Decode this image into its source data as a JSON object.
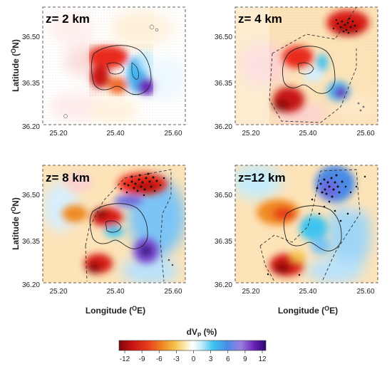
{
  "panels": [
    {
      "label": "z= 2 km"
    },
    {
      "label": "z= 4 km"
    },
    {
      "label": "z= 8 km"
    },
    {
      "label": "z=12 km"
    }
  ],
  "axes": {
    "x_ticks": [
      "25.20",
      "25.40",
      "25.60"
    ],
    "y_ticks": [
      "36.50",
      "36.35",
      "36.20"
    ],
    "xlabel_main": "Longitude (",
    "xlabel_sup": "O",
    "xlabel_end": "E)",
    "ylabel_main": "Latitude (",
    "ylabel_sup": "O",
    "ylabel_end": "N)"
  },
  "colorbar": {
    "title_main": "dV",
    "title_sub": "P",
    "title_end": " (%)",
    "ticks": [
      "-12",
      "-9",
      "-6",
      "-3",
      "0",
      "3",
      "6",
      "9",
      "12"
    ],
    "colors": [
      "#7a0a0a",
      "#c81212",
      "#e8401c",
      "#f08a24",
      "#f5c24a",
      "#fbeab2",
      "#ffffff",
      "#c6ecfb",
      "#3fc4ef",
      "#4a8ae6",
      "#9b7fe0",
      "#6a22b8",
      "#2a0a70"
    ]
  },
  "colors": {
    "background_field": "#fde3b8",
    "slow": "#d81c14",
    "fast": "#3b9ff0",
    "very_fast": "#5a1ab0"
  }
}
